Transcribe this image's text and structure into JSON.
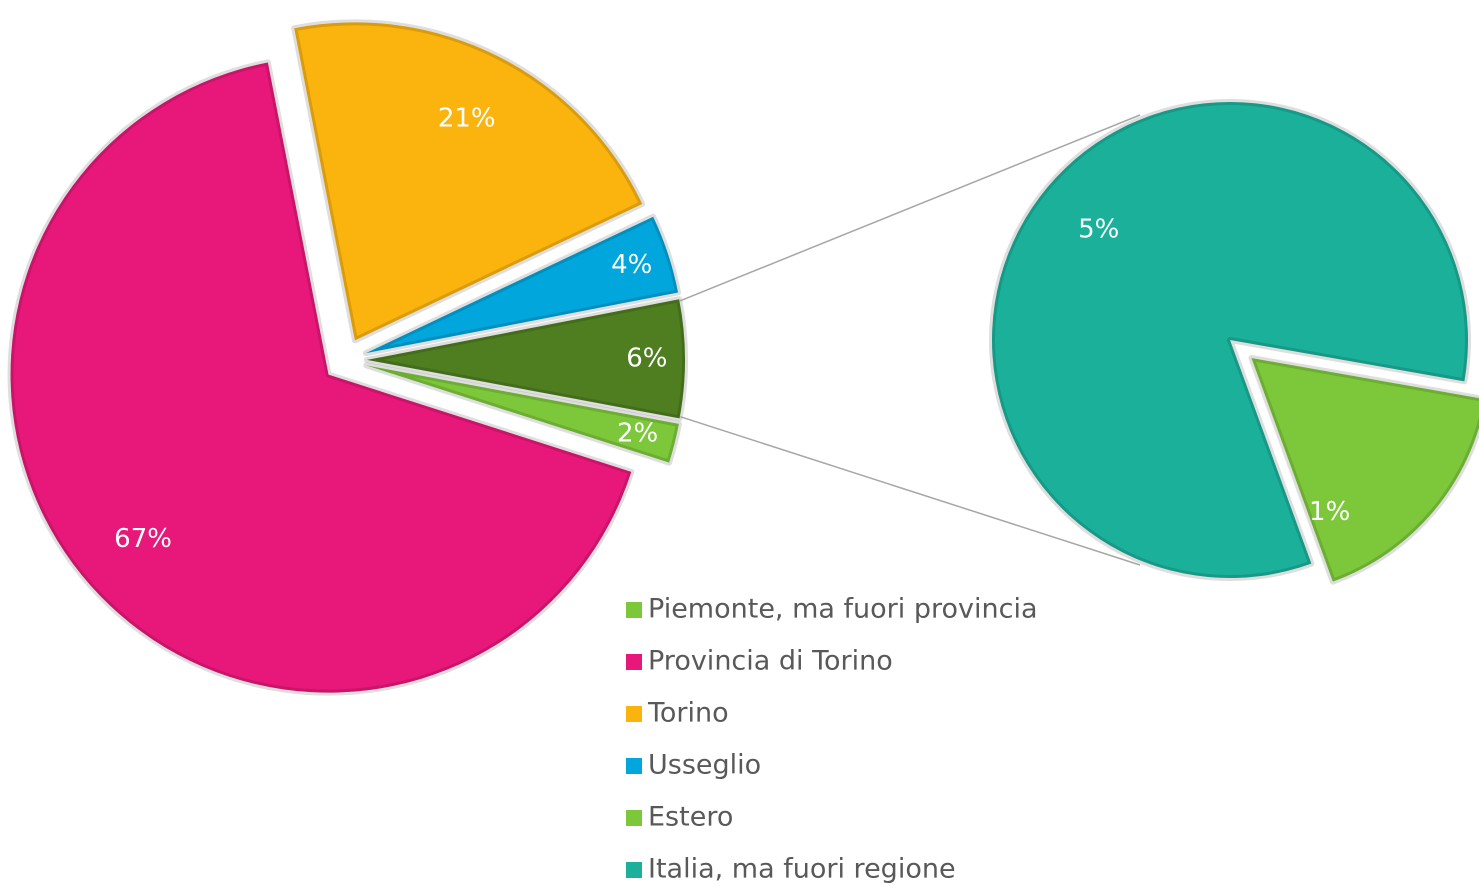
{
  "chart_data": {
    "type": "pie_of_pie",
    "categories": [
      "Piemonte, ma fuori provincia",
      "Provincia di Torino",
      "Torino",
      "Usseglio",
      "Estero",
      "Italia, ma fuori regione"
    ],
    "values": [
      2,
      67,
      21,
      4,
      1,
      5
    ],
    "value_labels": [
      "2%",
      "67%",
      "21%",
      "4%",
      "1%",
      "5%"
    ],
    "colors": [
      "#7dc83a",
      "#e8177a",
      "#fbb40e",
      "#00a6dc",
      "#7dc83a",
      "#1ab09a"
    ],
    "other_value": 6,
    "other_label": "6%",
    "other_color": "#4e7e20",
    "secondary": [
      4,
      5
    ],
    "legend": "bottom"
  }
}
